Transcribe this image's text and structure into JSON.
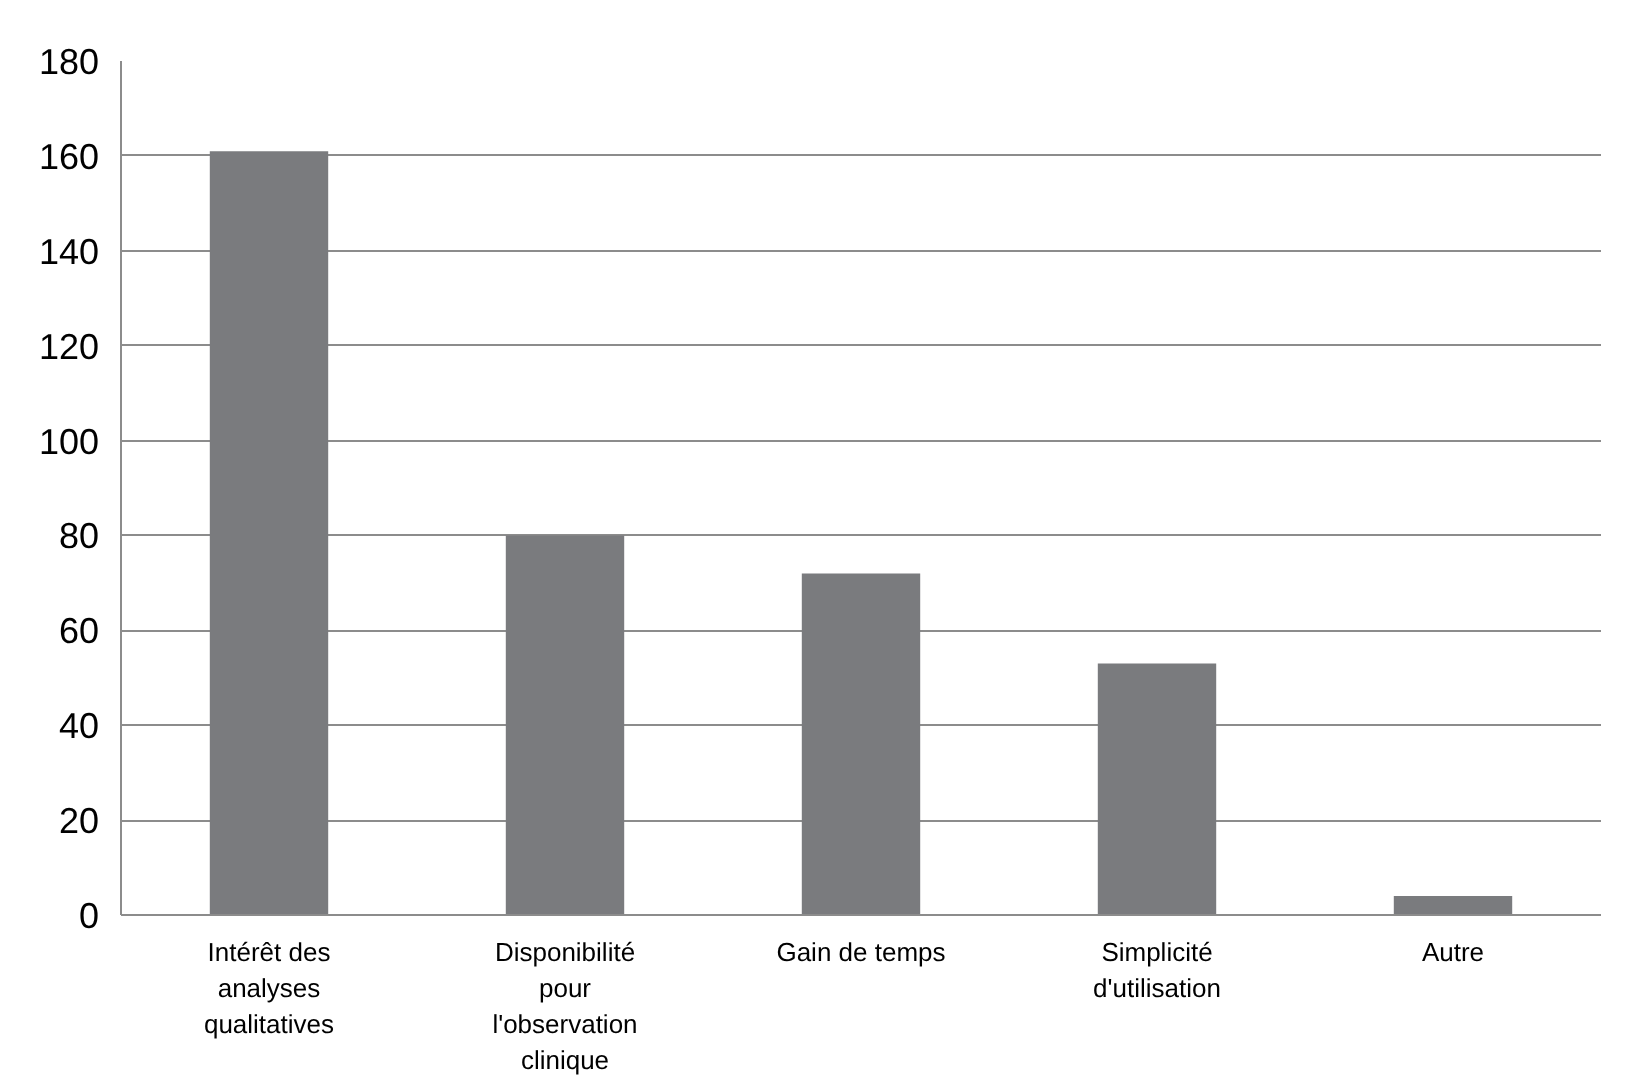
{
  "chart_data": {
    "type": "bar",
    "categories": [
      "Intérêt des analyses qualitatives",
      "Disponibilité pour l'observation clinique",
      "Gain de temps",
      "Simplicité d'utilisation",
      "Autre"
    ],
    "values": [
      161,
      80,
      72,
      53,
      4
    ],
    "color": "#7a7b7e",
    "ylim": [
      0,
      180
    ],
    "yticks": [
      0,
      20,
      40,
      60,
      80,
      100,
      120,
      140,
      160,
      180
    ],
    "grid": "y"
  }
}
